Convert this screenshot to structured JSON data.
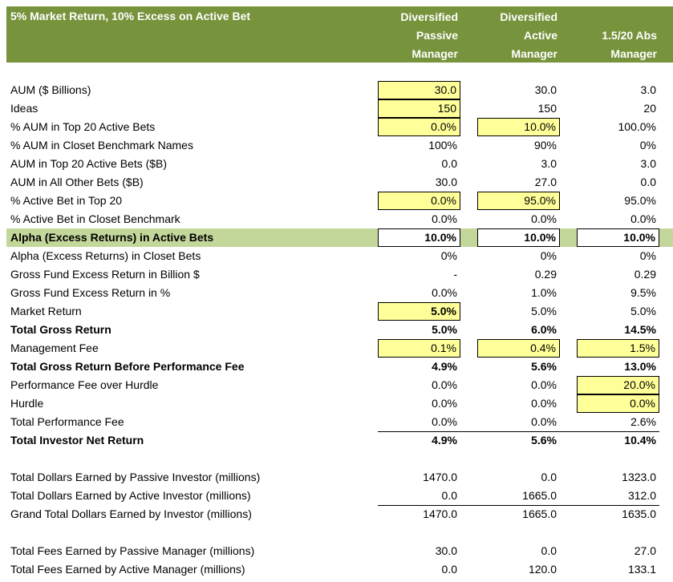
{
  "header": {
    "title": "5% Market Return, 10% Excess on Active Bet",
    "columns": [
      [
        "Diversified",
        "Passive",
        "Manager"
      ],
      [
        "Diversified",
        "Active",
        "Manager"
      ],
      [
        "",
        "1.5/20 Abs",
        "Manager"
      ]
    ]
  },
  "colors": {
    "header_bg": "#77933C",
    "highlight_row": "#C4D79B",
    "input_cell": "#FFFF99"
  },
  "rows": [
    {
      "label": "AUM ($ Billions)",
      "values": [
        "30.0",
        "30.0",
        "3.0"
      ],
      "styles": [
        "y",
        "",
        ""
      ]
    },
    {
      "label": "Ideas",
      "values": [
        "150",
        "150",
        "20"
      ],
      "styles": [
        "y",
        "",
        ""
      ]
    },
    {
      "label": "% AUM in Top 20 Active Bets",
      "values": [
        "0.0%",
        "10.0%",
        "100.0%"
      ],
      "styles": [
        "y",
        "y",
        ""
      ]
    },
    {
      "label": "% AUM in Closet Benchmark Names",
      "values": [
        "100%",
        "90%",
        "0%"
      ],
      "styles": [
        "",
        "",
        ""
      ]
    },
    {
      "label": "AUM in Top 20 Active Bets ($B)",
      "values": [
        "0.0",
        "3.0",
        "3.0"
      ],
      "styles": [
        "",
        "",
        ""
      ]
    },
    {
      "label": "AUM in All Other Bets ($B)",
      "values": [
        "30.0",
        "27.0",
        "0.0"
      ],
      "styles": [
        "",
        "",
        ""
      ]
    },
    {
      "label": "% Active Bet in Top 20",
      "values": [
        "0.0%",
        "95.0%",
        "95.0%"
      ],
      "styles": [
        "y",
        "y",
        ""
      ]
    },
    {
      "label": "% Active Bet in Closet Benchmark",
      "values": [
        "0.0%",
        "0.0%",
        "0.0%"
      ],
      "styles": [
        "",
        "",
        ""
      ]
    },
    {
      "label": "Alpha (Excess Returns) in Active Bets",
      "bold": true,
      "highlight": true,
      "values": [
        "10.0%",
        "10.0%",
        "10.0%"
      ],
      "styles": [
        "x b",
        "x b",
        "x b"
      ]
    },
    {
      "label": "Alpha (Excess Returns) in Closet Bets",
      "values": [
        "0%",
        "0%",
        "0%"
      ],
      "styles": [
        "",
        "",
        ""
      ]
    },
    {
      "label": "Gross Fund Excess Return in Billion $",
      "values": [
        "-",
        "0.29",
        "0.29"
      ],
      "styles": [
        "",
        "",
        ""
      ]
    },
    {
      "label": "Gross Fund Excess Return in %",
      "values": [
        "0.0%",
        "1.0%",
        "9.5%"
      ],
      "styles": [
        "",
        "",
        ""
      ]
    },
    {
      "label": "Market Return",
      "values": [
        "5.0%",
        "5.0%",
        "5.0%"
      ],
      "styles": [
        "y b",
        "",
        ""
      ]
    },
    {
      "label": "Total Gross Return",
      "bold": true,
      "values": [
        "5.0%",
        "6.0%",
        "14.5%"
      ],
      "styles": [
        "b",
        "b",
        "b"
      ]
    },
    {
      "label": "Management Fee",
      "values": [
        "0.1%",
        "0.4%",
        "1.5%"
      ],
      "styles": [
        "y",
        "y",
        "y"
      ]
    },
    {
      "label": "Total Gross Return Before Performance Fee",
      "bold": true,
      "values": [
        "4.9%",
        "5.6%",
        "13.0%"
      ],
      "styles": [
        "b",
        "b",
        "b"
      ]
    },
    {
      "label": "Performance Fee over Hurdle",
      "values": [
        "0.0%",
        "0.0%",
        "20.0%"
      ],
      "styles": [
        "",
        "",
        "y"
      ]
    },
    {
      "label": "Hurdle",
      "values": [
        "0.0%",
        "0.0%",
        "0.0%"
      ],
      "styles": [
        "",
        "",
        "y"
      ]
    },
    {
      "label": "Total Performance Fee",
      "values": [
        "0.0%",
        "0.0%",
        "2.6%"
      ],
      "styles": [
        "",
        "",
        ""
      ]
    },
    {
      "label": "Total Investor Net Return",
      "bold": true,
      "topline": true,
      "values": [
        "4.9%",
        "5.6%",
        "10.4%"
      ],
      "styles": [
        "b",
        "b",
        "b"
      ]
    },
    {
      "spacer": true
    },
    {
      "label": "Total Dollars Earned by Passive Investor (millions)",
      "values": [
        "1470.0",
        "0.0",
        "1323.0"
      ],
      "styles": [
        "",
        "",
        ""
      ]
    },
    {
      "label": "Total Dollars Earned by Active Investor (millions)",
      "values": [
        "0.0",
        "1665.0",
        "312.0"
      ],
      "styles": [
        "",
        "",
        ""
      ]
    },
    {
      "label": "Grand Total Dollars Earned by Investor (millions)",
      "topline": true,
      "values": [
        "1470.0",
        "1665.0",
        "1635.0"
      ],
      "styles": [
        "",
        "",
        ""
      ]
    },
    {
      "spacer": true
    },
    {
      "label": "Total Fees Earned by Passive Manager (millions)",
      "values": [
        "30.0",
        "0.0",
        "27.0"
      ],
      "styles": [
        "",
        "",
        ""
      ]
    },
    {
      "label": "Total Fees Earned by Active Manager (millions)",
      "values": [
        "0.0",
        "120.0",
        "133.1"
      ],
      "styles": [
        "",
        "",
        ""
      ]
    }
  ]
}
